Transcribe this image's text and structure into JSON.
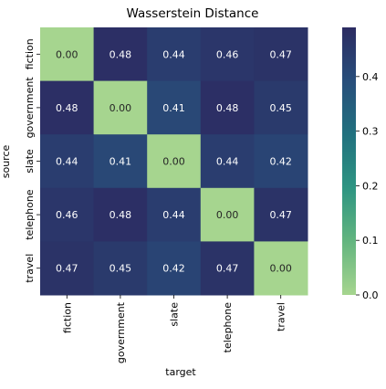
{
  "chart_data": {
    "type": "heatmap",
    "title": "Wasserstein Distance",
    "xlabel": "target",
    "ylabel": "source",
    "x_categories": [
      "fiction",
      "government",
      "slate",
      "telephone",
      "travel"
    ],
    "y_categories": [
      "fiction",
      "government",
      "slate",
      "telephone",
      "travel"
    ],
    "values": [
      [
        0.0,
        0.48,
        0.44,
        0.46,
        0.47
      ],
      [
        0.48,
        0.0,
        0.41,
        0.48,
        0.45
      ],
      [
        0.44,
        0.41,
        0.0,
        0.44,
        0.42
      ],
      [
        0.46,
        0.48,
        0.44,
        0.0,
        0.47
      ],
      [
        0.47,
        0.45,
        0.42,
        0.47,
        0.0
      ]
    ],
    "value_format": "0.00",
    "colorbar": {
      "range": [
        0.0,
        0.49
      ],
      "ticks": [
        0.0,
        0.1,
        0.2,
        0.3,
        0.4
      ],
      "tick_labels": [
        "0.0",
        "0.1",
        "0.2",
        "0.3",
        "0.4"
      ],
      "colormap_stops": [
        "#a6d58f",
        "#63b57f",
        "#2e9582",
        "#21717f",
        "#284e7b",
        "#2c2c62"
      ]
    },
    "annotation_colors": {
      "light_cell_text": "#262626",
      "dark_cell_text": "#ffffff"
    }
  }
}
